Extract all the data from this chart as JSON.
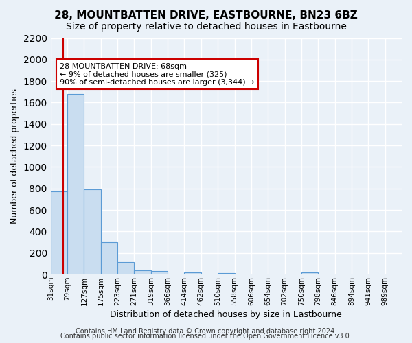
{
  "title": "28, MOUNTBATTEN DRIVE, EASTBOURNE, BN23 6BZ",
  "subtitle": "Size of property relative to detached houses in Eastbourne",
  "xlabel": "Distribution of detached houses by size in Eastbourne",
  "ylabel": "Number of detached properties",
  "bar_labels": [
    "31sqm",
    "79sqm",
    "127sqm",
    "175sqm",
    "223sqm",
    "271sqm",
    "319sqm",
    "366sqm",
    "414sqm",
    "462sqm",
    "510sqm",
    "558sqm",
    "606sqm",
    "654sqm",
    "702sqm",
    "750sqm",
    "798sqm",
    "846sqm",
    "894sqm",
    "941sqm",
    "989sqm"
  ],
  "bar_values": [
    775,
    1680,
    795,
    300,
    115,
    40,
    30,
    0,
    20,
    0,
    15,
    0,
    0,
    0,
    0,
    20,
    0,
    0,
    0,
    0,
    0
  ],
  "bar_color": "#c9ddf0",
  "bar_edge_color": "#5b9bd5",
  "marker_color": "#cc0000",
  "annotation_title": "28 MOUNTBATTEN DRIVE: 68sqm",
  "annotation_line1": "← 9% of detached houses are smaller (325)",
  "annotation_line2": "90% of semi-detached houses are larger (3,344) →",
  "annotation_box_color": "#ffffff",
  "annotation_box_edge": "#cc0000",
  "ylim": [
    0,
    2200
  ],
  "yticks": [
    0,
    200,
    400,
    600,
    800,
    1000,
    1200,
    1400,
    1600,
    1800,
    2000,
    2200
  ],
  "footer1": "Contains HM Land Registry data © Crown copyright and database right 2024.",
  "footer2": "Contains public sector information licensed under the Open Government Licence v3.0.",
  "bg_color": "#eaf1f8",
  "plot_bg_color": "#eaf1f8",
  "grid_color": "#ffffff",
  "title_fontsize": 11,
  "subtitle_fontsize": 10,
  "axis_label_fontsize": 9,
  "tick_fontsize": 7.5,
  "footer_fontsize": 7
}
